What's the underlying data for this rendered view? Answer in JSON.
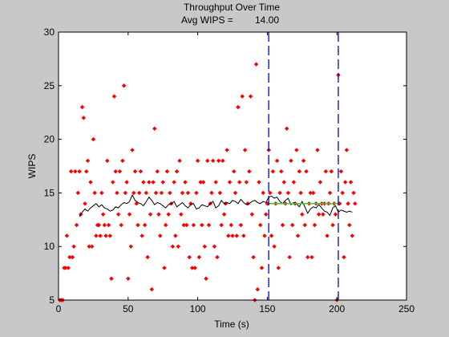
{
  "chart_data": {
    "type": "scatter",
    "title": "Throughput Over Time",
    "subtitle_label": "Avg WIPS =",
    "subtitle_value": "14.00",
    "xlabel": "Time (s)",
    "ylabel": "WIPS",
    "xlim": [
      0,
      250
    ],
    "ylim": [
      5,
      30
    ],
    "xticks": [
      0,
      50,
      100,
      150,
      200,
      250
    ],
    "yticks": [
      5,
      10,
      15,
      20,
      25,
      30
    ],
    "grid": false,
    "colors": {
      "points": "#ff0000",
      "moving_average": "#000000",
      "markers": "#0000cc",
      "average": "#33cc33",
      "background": "#c8c8c8",
      "axes": "#ffffff"
    },
    "vertical_markers_x": [
      151,
      201
    ],
    "average_segment": {
      "x": [
        151,
        201
      ],
      "y": 14
    },
    "points": [
      [
        1,
        5
      ],
      [
        2,
        5
      ],
      [
        3,
        5
      ],
      [
        4,
        8
      ],
      [
        5,
        8
      ],
      [
        6,
        11
      ],
      [
        7,
        8
      ],
      [
        8,
        9
      ],
      [
        9,
        17
      ],
      [
        10,
        9
      ],
      [
        11,
        10
      ],
      [
        12,
        17
      ],
      [
        13,
        12
      ],
      [
        14,
        15
      ],
      [
        15,
        17
      ],
      [
        16,
        13
      ],
      [
        17,
        23
      ],
      [
        18,
        22
      ],
      [
        19,
        14
      ],
      [
        20,
        17
      ],
      [
        21,
        18
      ],
      [
        22,
        10
      ],
      [
        23,
        16
      ],
      [
        24,
        10
      ],
      [
        25,
        20
      ],
      [
        26,
        15
      ],
      [
        27,
        11
      ],
      [
        28,
        12
      ],
      [
        29,
        12
      ],
      [
        30,
        11
      ],
      [
        31,
        15
      ],
      [
        32,
        13
      ],
      [
        33,
        12
      ],
      [
        34,
        11
      ],
      [
        35,
        18
      ],
      [
        36,
        12
      ],
      [
        37,
        11
      ],
      [
        38,
        7
      ],
      [
        39,
        16
      ],
      [
        40,
        24
      ],
      [
        41,
        17
      ],
      [
        42,
        15
      ],
      [
        43,
        13
      ],
      [
        44,
        17
      ],
      [
        45,
        12
      ],
      [
        46,
        18
      ],
      [
        47,
        25
      ],
      [
        48,
        15
      ],
      [
        49,
        16
      ],
      [
        50,
        7
      ],
      [
        51,
        13
      ],
      [
        52,
        10
      ],
      [
        53,
        19
      ],
      [
        54,
        15
      ],
      [
        55,
        17
      ],
      [
        56,
        14
      ],
      [
        57,
        12
      ],
      [
        58,
        15
      ],
      [
        59,
        17
      ],
      [
        60,
        11
      ],
      [
        61,
        16
      ],
      [
        62,
        12
      ],
      [
        63,
        15
      ],
      [
        64,
        9
      ],
      [
        65,
        16
      ],
      [
        66,
        13
      ],
      [
        67,
        6
      ],
      [
        68,
        16
      ],
      [
        69,
        21
      ],
      [
        70,
        15
      ],
      [
        71,
        17
      ],
      [
        72,
        13
      ],
      [
        73,
        11
      ],
      [
        74,
        15
      ],
      [
        75,
        16
      ],
      [
        76,
        8
      ],
      [
        77,
        12
      ],
      [
        78,
        17
      ],
      [
        79,
        13
      ],
      [
        80,
        15
      ],
      [
        81,
        14
      ],
      [
        82,
        10
      ],
      [
        83,
        16
      ],
      [
        84,
        11
      ],
      [
        85,
        17
      ],
      [
        86,
        10
      ],
      [
        87,
        18
      ],
      [
        88,
        13
      ],
      [
        89,
        15
      ],
      [
        90,
        12
      ],
      [
        91,
        16
      ],
      [
        92,
        12
      ],
      [
        93,
        15
      ],
      [
        94,
        9
      ],
      [
        95,
        14
      ],
      [
        96,
        8
      ],
      [
        97,
        12
      ],
      [
        98,
        8
      ],
      [
        99,
        15
      ],
      [
        100,
        18
      ],
      [
        101,
        9
      ],
      [
        102,
        16
      ],
      [
        103,
        12
      ],
      [
        104,
        16
      ],
      [
        105,
        10
      ],
      [
        106,
        7
      ],
      [
        107,
        18
      ],
      [
        108,
        12
      ],
      [
        109,
        14
      ],
      [
        110,
        15
      ],
      [
        111,
        18
      ],
      [
        112,
        10
      ],
      [
        113,
        16
      ],
      [
        114,
        9
      ],
      [
        115,
        18
      ],
      [
        116,
        15
      ],
      [
        117,
        12
      ],
      [
        118,
        18
      ],
      [
        119,
        13
      ],
      [
        120,
        14
      ],
      [
        121,
        19
      ],
      [
        122,
        11
      ],
      [
        123,
        16
      ],
      [
        124,
        12
      ],
      [
        125,
        11
      ],
      [
        126,
        17
      ],
      [
        127,
        15
      ],
      [
        128,
        11
      ],
      [
        129,
        23
      ],
      [
        130,
        16
      ],
      [
        131,
        12
      ],
      [
        132,
        24
      ],
      [
        133,
        11
      ],
      [
        134,
        19
      ],
      [
        135,
        16
      ],
      [
        136,
        14
      ],
      [
        137,
        17
      ],
      [
        138,
        24
      ],
      [
        139,
        13
      ],
      [
        140,
        9
      ],
      [
        141,
        5
      ],
      [
        142,
        27
      ],
      [
        143,
        6
      ],
      [
        144,
        16
      ],
      [
        145,
        12
      ],
      [
        146,
        8
      ],
      [
        147,
        15
      ],
      [
        148,
        11
      ],
      [
        149,
        13
      ],
      [
        150,
        14
      ],
      [
        151,
        19
      ],
      [
        152,
        15
      ],
      [
        153,
        11
      ],
      [
        154,
        17
      ],
      [
        155,
        10
      ],
      [
        156,
        14
      ],
      [
        157,
        18
      ],
      [
        158,
        8
      ],
      [
        159,
        15
      ],
      [
        160,
        17
      ],
      [
        161,
        12
      ],
      [
        162,
        16
      ],
      [
        163,
        14
      ],
      [
        164,
        21
      ],
      [
        165,
        15
      ],
      [
        166,
        9
      ],
      [
        167,
        18
      ],
      [
        168,
        12
      ],
      [
        169,
        16
      ],
      [
        170,
        14
      ],
      [
        171,
        19
      ],
      [
        172,
        11
      ],
      [
        173,
        17
      ],
      [
        174,
        15
      ],
      [
        175,
        13
      ],
      [
        176,
        18
      ],
      [
        177,
        12
      ],
      [
        178,
        17
      ],
      [
        179,
        9
      ],
      [
        180,
        14
      ],
      [
        181,
        15
      ],
      [
        182,
        9
      ],
      [
        183,
        15
      ],
      [
        184,
        12
      ],
      [
        185,
        14
      ],
      [
        186,
        19
      ],
      [
        187,
        13
      ],
      [
        188,
        16
      ],
      [
        189,
        14
      ],
      [
        190,
        13
      ],
      [
        191,
        14
      ],
      [
        192,
        17
      ],
      [
        193,
        11
      ],
      [
        194,
        14
      ],
      [
        195,
        15
      ],
      [
        196,
        17
      ],
      [
        197,
        12
      ],
      [
        198,
        14
      ],
      [
        199,
        13
      ],
      [
        200,
        5
      ],
      [
        201,
        26
      ],
      [
        202,
        14
      ],
      [
        203,
        17
      ],
      [
        204,
        15
      ],
      [
        205,
        9
      ],
      [
        206,
        16
      ],
      [
        207,
        19
      ],
      [
        208,
        14
      ],
      [
        209,
        12
      ],
      [
        210,
        16
      ],
      [
        211,
        11
      ],
      [
        212,
        15
      ],
      [
        213,
        14
      ]
    ],
    "moving_average": {
      "x": [
        15,
        17,
        19,
        21,
        23,
        25,
        27,
        29,
        31,
        33,
        35,
        37,
        39,
        41,
        43,
        45,
        47,
        49,
        51,
        53,
        55,
        57,
        59,
        61,
        63,
        65,
        67,
        69,
        71,
        73,
        75,
        77,
        79,
        81,
        83,
        85,
        87,
        89,
        91,
        93,
        95,
        97,
        99,
        101,
        103,
        105,
        107,
        109,
        111,
        113,
        115,
        117,
        119,
        121,
        123,
        125,
        127,
        129,
        131,
        133,
        135,
        137,
        139,
        141,
        143,
        145,
        147,
        149,
        151,
        153,
        155,
        157,
        159,
        161,
        163,
        165,
        167,
        169,
        171,
        173,
        175,
        177,
        179,
        181,
        183,
        185,
        187,
        189,
        191,
        193,
        195,
        197,
        199,
        201,
        203,
        205,
        207,
        209,
        211
      ],
      "y": [
        12.8,
        13.2,
        13.5,
        13.3,
        13.6,
        13.8,
        14.0,
        13.7,
        13.9,
        13.6,
        13.5,
        13.3,
        13.4,
        13.7,
        13.6,
        13.9,
        14.1,
        14.0,
        14.2,
        14.8,
        14.3,
        14.1,
        14.0,
        13.8,
        14.2,
        14.6,
        14.3,
        13.9,
        14.1,
        14.0,
        13.8,
        13.6,
        13.9,
        14.0,
        14.2,
        13.7,
        13.9,
        14.1,
        13.8,
        13.6,
        13.9,
        14.0,
        13.5,
        13.6,
        13.9,
        13.8,
        13.7,
        14.0,
        14.2,
        13.6,
        13.8,
        14.3,
        14.0,
        14.1,
        14.0,
        14.3,
        14.2,
        14.0,
        14.4,
        14.1,
        13.9,
        14.0,
        14.2,
        14.3,
        14.1,
        14.0,
        14.2,
        14.1,
        14.6,
        14.7,
        14.5,
        14.6,
        14.2,
        14.0,
        14.3,
        14.5,
        13.9,
        14.1,
        14.0,
        13.7,
        14.2,
        13.7,
        13.1,
        13.5,
        13.7,
        13.6,
        13.9,
        13.6,
        13.3,
        13.2,
        12.9,
        13.6,
        13.8,
        13.2,
        13.4,
        13.3,
        13.2,
        13.3,
        13.2
      ]
    }
  }
}
